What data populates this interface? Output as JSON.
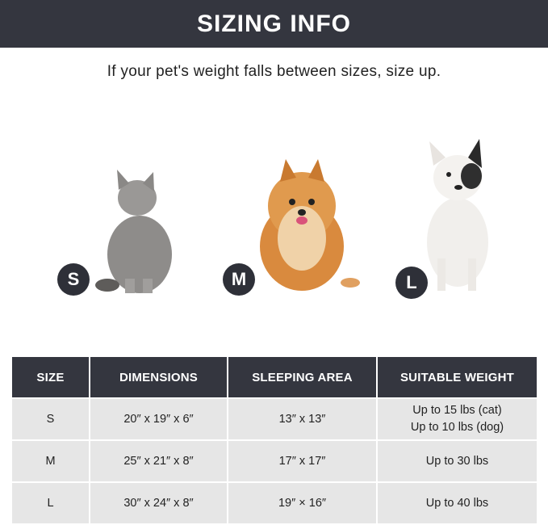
{
  "banner": {
    "title": "SIZING INFO"
  },
  "subtitle": "If your pet's weight falls between sizes, size up.",
  "pets": [
    {
      "badge": "S",
      "animal": "gray cat",
      "badge_color": "#2e3038"
    },
    {
      "badge": "M",
      "animal": "pomeranian dog",
      "badge_color": "#2e3038"
    },
    {
      "badge": "L",
      "animal": "french bulldog",
      "badge_color": "#2e3038"
    }
  ],
  "table": {
    "headers": [
      "SIZE",
      "DIMENSIONS",
      "SLEEPING AREA",
      "SUITABLE WEIGHT"
    ],
    "rows": [
      {
        "size": "S",
        "dimensions": "20″ x 19″ x 6″",
        "sleeping_area": "13″ x 13″",
        "weight": [
          "Up to 15 lbs (cat)",
          "Up to 10 lbs (dog)"
        ]
      },
      {
        "size": "M",
        "dimensions": "25″ x 21″ x 8″",
        "sleeping_area": "17″ x 17″",
        "weight": [
          "Up to 30 lbs"
        ]
      },
      {
        "size": "L",
        "dimensions": "30″ x 24″ x 8″",
        "sleeping_area": "19″ × 16″",
        "weight": [
          "Up to 40 lbs"
        ]
      }
    ]
  },
  "colors": {
    "header_bg": "#34363f",
    "row_bg": "#e6e6e6"
  }
}
